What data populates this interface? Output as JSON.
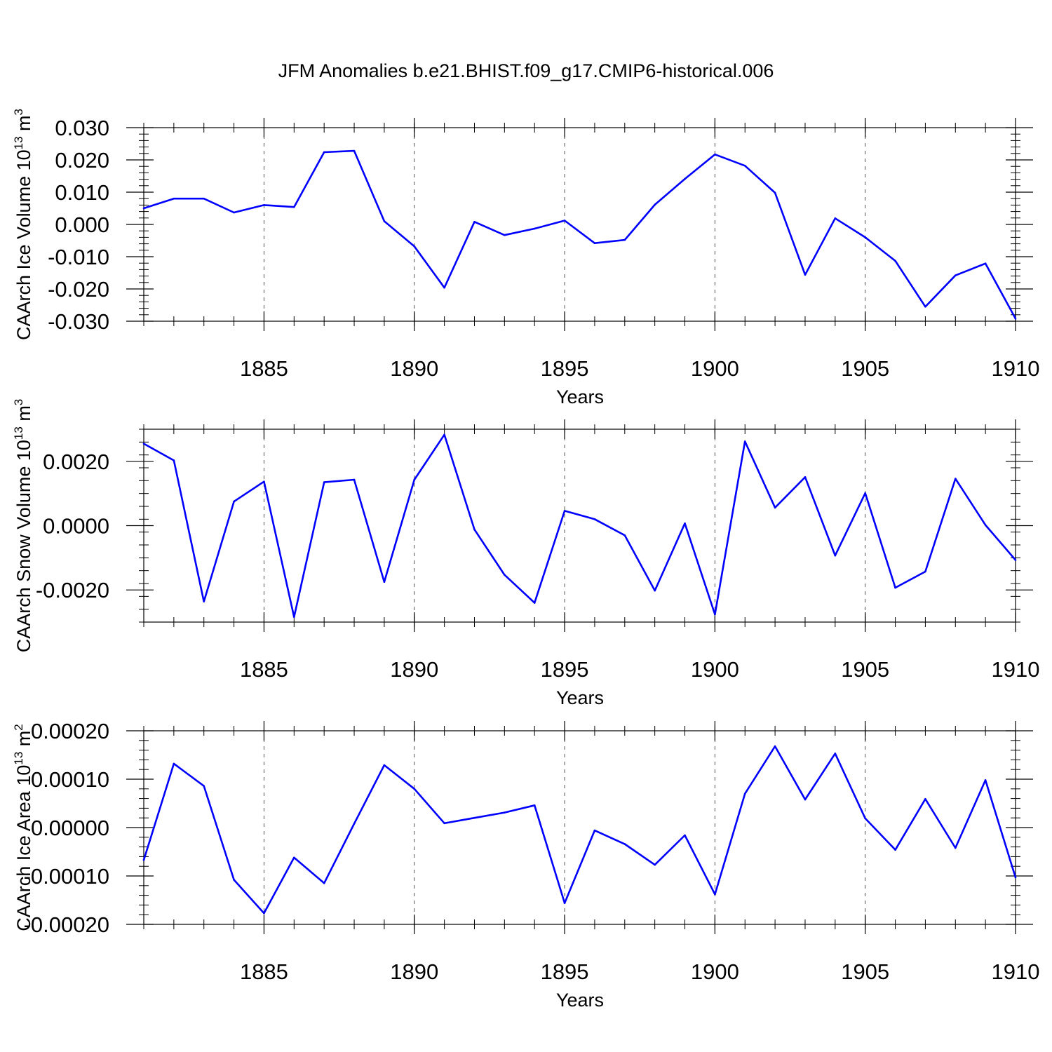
{
  "title": "JFM Anomalies b.e21.BHIST.f09_g17.CMIP6-historical.006",
  "chart_data": [
    {
      "type": "line",
      "ylabel_main": "CAArch Ice Volume 10",
      "ylabel_sup1": "13",
      "ylabel_mid": " m",
      "ylabel_sup2": "3",
      "xlabel": "Years",
      "xlim": [
        1881,
        1910
      ],
      "ylim": [
        -0.03,
        0.03
      ],
      "yticks": [
        -0.03,
        -0.02,
        -0.01,
        0.0,
        0.01,
        0.02,
        0.03
      ],
      "ytick_labels": [
        "-0.030",
        "-0.020",
        "-0.010",
        "0.000",
        "0.010",
        "0.020",
        "0.030"
      ],
      "xticks": [
        1885,
        1890,
        1895,
        1900,
        1905,
        1910
      ],
      "xtick_labels": [
        "1885",
        "1890",
        "1895",
        "1900",
        "1905",
        "1910"
      ],
      "line_color": "#0000ff",
      "x": [
        1881,
        1882,
        1883,
        1884,
        1885,
        1886,
        1887,
        1888,
        1889,
        1890,
        1891,
        1892,
        1893,
        1894,
        1895,
        1896,
        1897,
        1898,
        1899,
        1900,
        1901,
        1902,
        1903,
        1904,
        1905,
        1906,
        1907,
        1908,
        1909,
        1910
      ],
      "values": [
        0.005,
        0.008,
        0.008,
        0.0037,
        0.006,
        0.0054,
        0.0224,
        0.0228,
        0.001,
        -0.0068,
        -0.0196,
        0.0008,
        -0.0033,
        -0.0013,
        0.0012,
        -0.0058,
        -0.0048,
        0.0061,
        0.0141,
        0.0217,
        0.0182,
        0.0098,
        -0.0156,
        0.0019,
        -0.004,
        -0.0113,
        -0.0255,
        -0.0158,
        -0.0121,
        -0.0292
      ]
    },
    {
      "type": "line",
      "ylabel_main": "CAArch Snow Volume 10",
      "ylabel_sup1": "13",
      "ylabel_mid": " m",
      "ylabel_sup2": "3",
      "xlabel": "Years",
      "xlim": [
        1881,
        1910
      ],
      "ylim": [
        -0.003,
        0.003
      ],
      "yticks": [
        -0.002,
        0.0,
        0.002
      ],
      "ytick_labels": [
        "-0.0020",
        "0.0000",
        "0.0020"
      ],
      "xticks": [
        1885,
        1890,
        1895,
        1900,
        1905,
        1910
      ],
      "xtick_labels": [
        "1885",
        "1890",
        "1895",
        "1900",
        "1905",
        "1910"
      ],
      "line_color": "#0000ff",
      "x": [
        1881,
        1882,
        1883,
        1884,
        1885,
        1886,
        1887,
        1888,
        1889,
        1890,
        1891,
        1892,
        1893,
        1894,
        1895,
        1896,
        1897,
        1898,
        1899,
        1900,
        1901,
        1902,
        1903,
        1904,
        1905,
        1906,
        1907,
        1908,
        1909,
        1910
      ],
      "values": [
        0.00255,
        0.00203,
        -0.00236,
        0.00075,
        0.00137,
        -0.00284,
        0.00135,
        0.00143,
        -0.00175,
        0.00143,
        0.00283,
        -0.00012,
        -0.00153,
        -0.0024,
        0.00046,
        0.0002,
        -0.0003,
        -0.00202,
        7e-05,
        -0.00276,
        0.00262,
        0.00056,
        0.00151,
        -0.00093,
        0.00101,
        -0.00193,
        -0.00143,
        0.00146,
        2e-05,
        -0.00107
      ]
    },
    {
      "type": "line",
      "ylabel_main": "CAArch Ice Area 10",
      "ylabel_sup1": "13",
      "ylabel_mid": " m",
      "ylabel_sup2": "2",
      "xlabel": "Years",
      "xlim": [
        1881,
        1910
      ],
      "ylim": [
        -0.0002,
        0.0002
      ],
      "yticks": [
        -0.0002,
        -0.0001,
        0.0,
        0.0001,
        0.0002
      ],
      "ytick_labels": [
        "-0.00020",
        "-0.00010",
        "0.00000",
        "0.00010",
        "0.00020"
      ],
      "xticks": [
        1885,
        1890,
        1895,
        1900,
        1905,
        1910
      ],
      "xtick_labels": [
        "1885",
        "1890",
        "1895",
        "1900",
        "1905",
        "1910"
      ],
      "line_color": "#0000ff",
      "x": [
        1881,
        1882,
        1883,
        1884,
        1885,
        1886,
        1887,
        1888,
        1889,
        1890,
        1891,
        1892,
        1893,
        1894,
        1895,
        1896,
        1897,
        1898,
        1899,
        1900,
        1901,
        1902,
        1903,
        1904,
        1905,
        1906,
        1907,
        1908,
        1909,
        1910
      ],
      "values": [
        -6.7e-05,
        0.000132,
        8.6e-05,
        -0.000108,
        -0.000177,
        -6.2e-05,
        -0.000115,
        8e-06,
        0.000129,
        8e-05,
        9e-06,
        2e-05,
        3.1e-05,
        4.6e-05,
        -0.000156,
        -6e-06,
        -3.4e-05,
        -7.7e-05,
        -1.6e-05,
        -0.000138,
        7e-05,
        0.000168,
        5.8e-05,
        0.000153,
        1.9e-05,
        -4.6e-05,
        5.9e-05,
        -4.2e-05,
        9.8e-05,
        -0.000103
      ]
    }
  ]
}
